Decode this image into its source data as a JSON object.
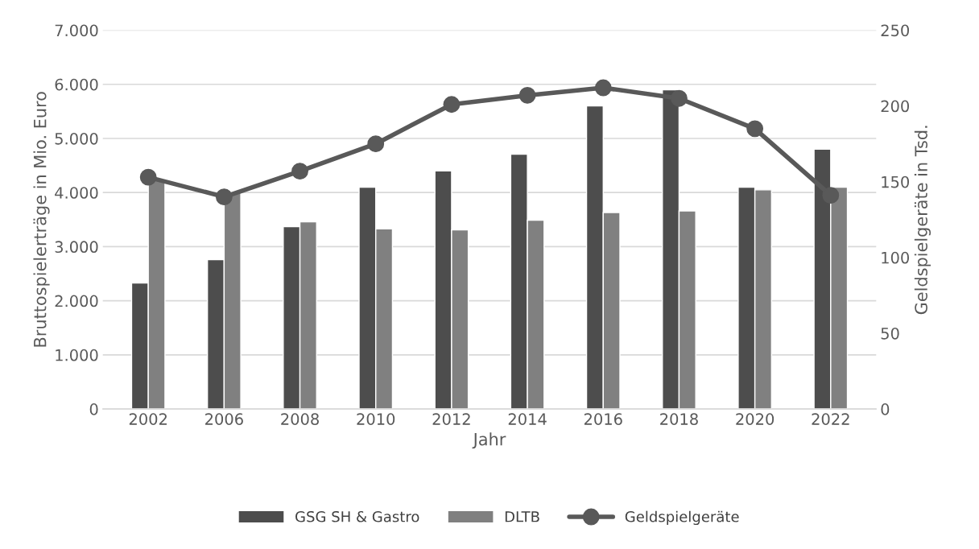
{
  "chart_data": {
    "type": "bar",
    "xlabel": "Jahr",
    "ylabel": "Bruttospielerträge in Mio. Euro",
    "y2label": "Geldspielgeräte in Tsd.",
    "categories": [
      "2002",
      "2006",
      "2008",
      "2010",
      "2012",
      "2014",
      "2016",
      "2018",
      "2020",
      "2022"
    ],
    "series": [
      {
        "name": "GSG SH & Gastro",
        "color": "#4d4d4d",
        "values": [
          2330,
          2760,
          3370,
          4100,
          4400,
          4710,
          5600,
          5900,
          4100,
          4800
        ]
      },
      {
        "name": "DLTB",
        "color": "#808080",
        "values": [
          4220,
          4000,
          3460,
          3330,
          3310,
          3490,
          3630,
          3660,
          4050,
          4100
        ]
      },
      {
        "name": "Geldspielgeräte",
        "type": "line",
        "axis": "y2",
        "color": "#595959",
        "marker": "circle",
        "values": [
          153,
          140,
          157,
          175,
          201,
          207,
          212,
          205,
          185,
          141
        ]
      }
    ],
    "ylim": [
      0,
      7000
    ],
    "yticks": [
      {
        "value": 0,
        "label": "0"
      },
      {
        "value": 1000,
        "label": "1.000"
      },
      {
        "value": 2000,
        "label": "2.000"
      },
      {
        "value": 3000,
        "label": "3.000"
      },
      {
        "value": 4000,
        "label": "4.000"
      },
      {
        "value": 5000,
        "label": "5.000"
      },
      {
        "value": 6000,
        "label": "6.000"
      },
      {
        "value": 7000,
        "label": "7.000"
      }
    ],
    "y2lim": [
      0,
      250
    ],
    "y2ticks": [
      0,
      50,
      100,
      150,
      200,
      250
    ],
    "grid": "y",
    "legend": "bottom"
  }
}
